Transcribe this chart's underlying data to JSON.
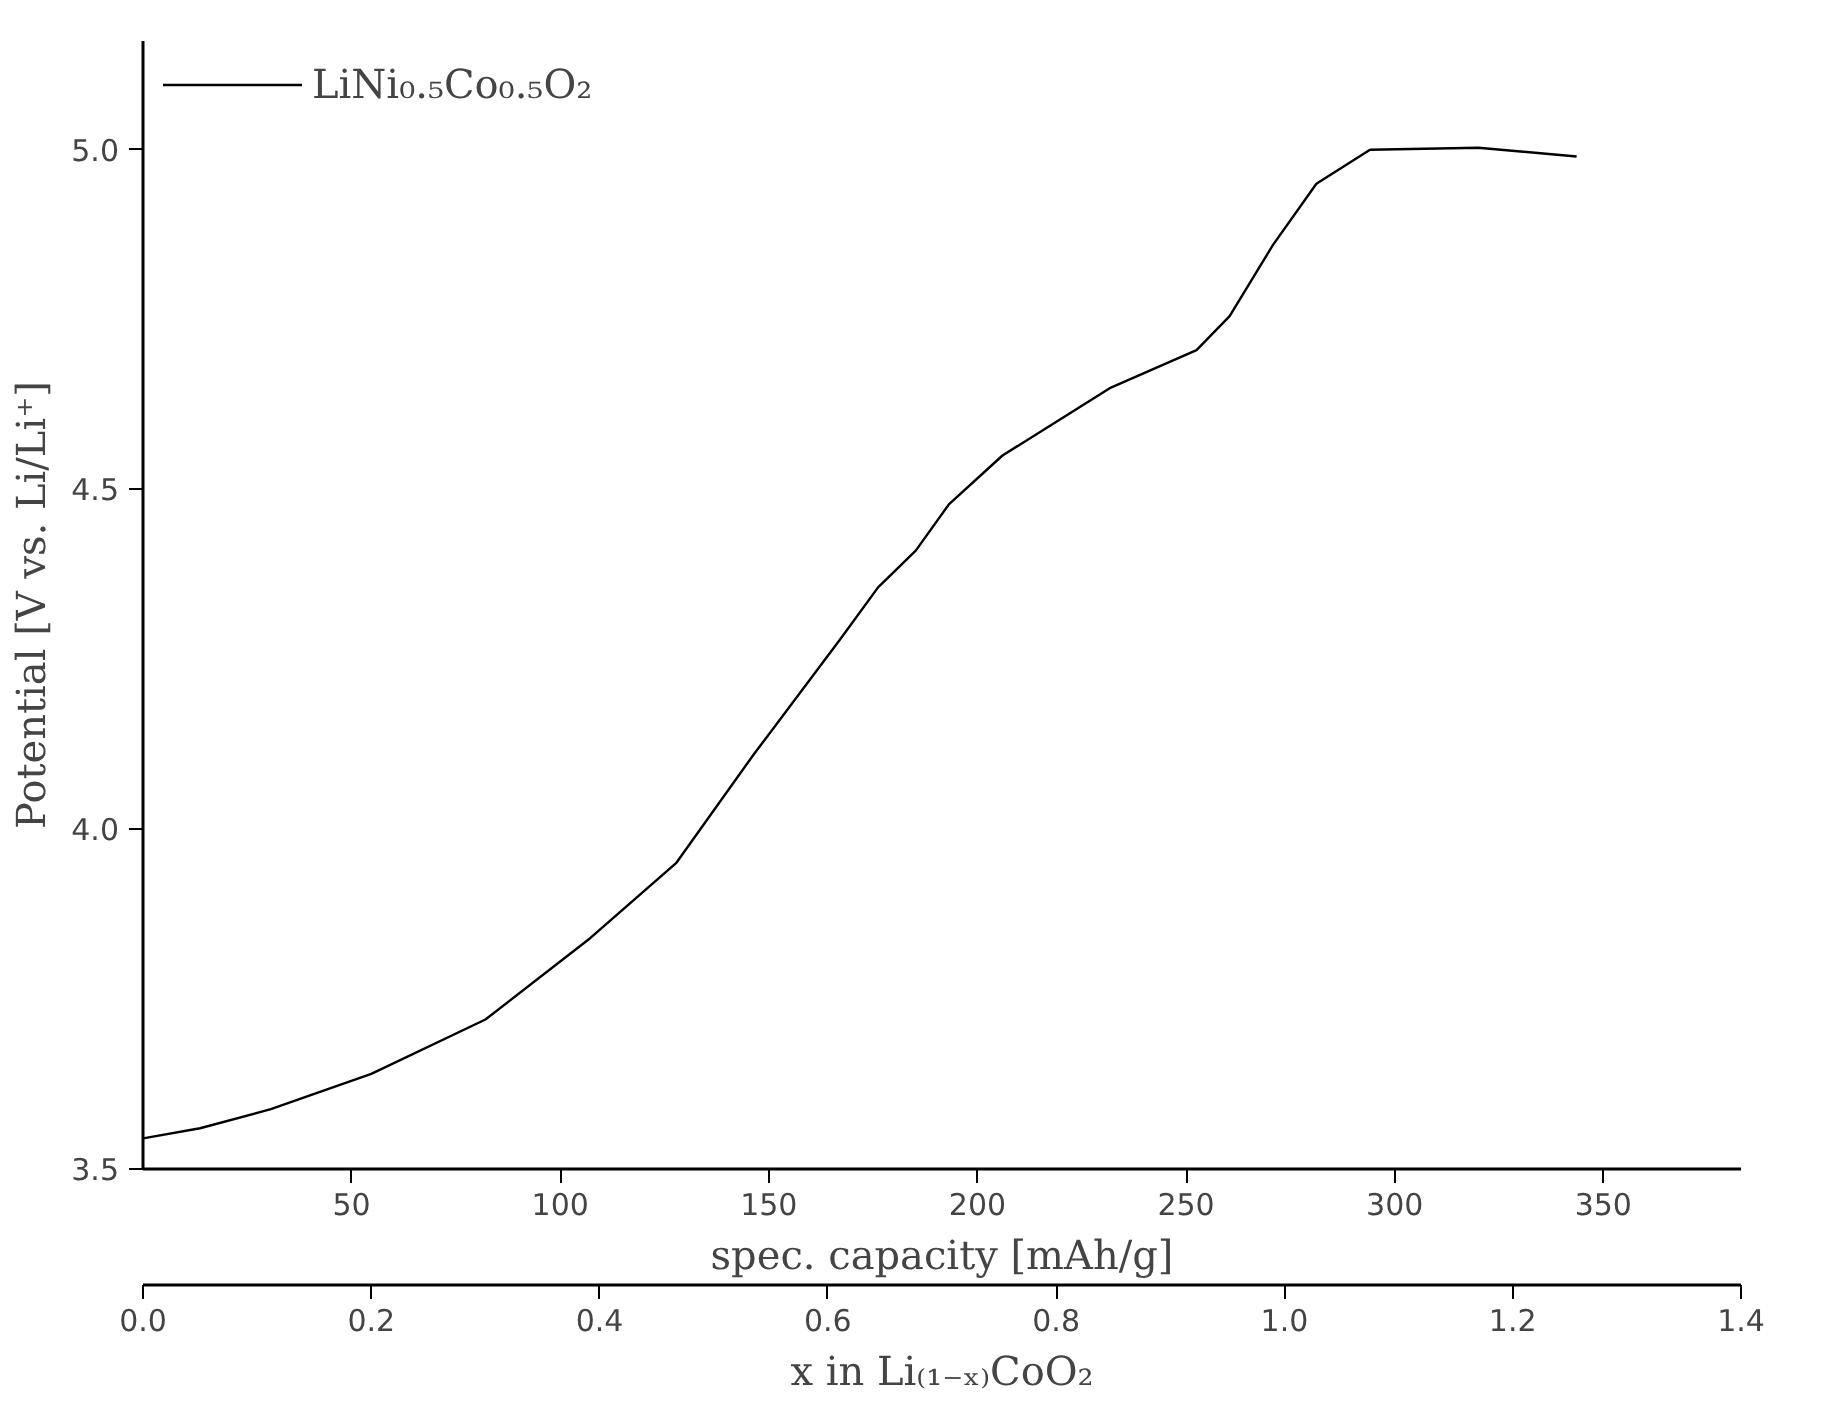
{
  "chart_data": {
    "type": "line",
    "xlabel": "x in Li₍₁₋ₓ₎CoO₂",
    "ylabel": "Potential [V vs. Li/Li⁺]",
    "x2label": "spec. capacity [mAh/g]",
    "xlim": [
      0,
      1.4
    ],
    "xticks": [
      {
        "value": 0,
        "label": "0.0"
      },
      0.2,
      0.4,
      0.6,
      0.8,
      {
        "value": 1,
        "label": "1.0"
      },
      1.2,
      1.4
    ],
    "ylim": [
      3.5,
      5.16
    ],
    "yticks": [
      3.5,
      {
        "value": 4,
        "label": "4.0"
      },
      4.5,
      {
        "value": 5,
        "label": "5.0"
      }
    ],
    "x2lim": [
      0,
      383
    ],
    "x2ticks": [
      50,
      100,
      150,
      200,
      250,
      300,
      350
    ],
    "grid": false,
    "legend": "top left",
    "line_style": "solid",
    "series": [
      {
        "name": "LiNi₀.₅Co₀.₅O₂",
        "color": "#000000",
        "x": [
          0,
          0.05,
          0.112,
          0.2,
          0.3,
          0.392,
          0.467,
          0.535,
          0.611,
          0.644,
          0.677,
          0.706,
          0.753,
          0.848,
          0.923,
          0.952,
          0.99,
          1.028,
          1.075,
          1.17,
          1.256
        ],
        "values": [
          3.545,
          3.56,
          3.588,
          3.64,
          3.72,
          3.84,
          3.95,
          4.11,
          4.28,
          4.356,
          4.41,
          4.478,
          4.55,
          4.65,
          4.705,
          4.755,
          4.86,
          4.95,
          5.0,
          5.003,
          4.99
        ]
      }
    ]
  }
}
